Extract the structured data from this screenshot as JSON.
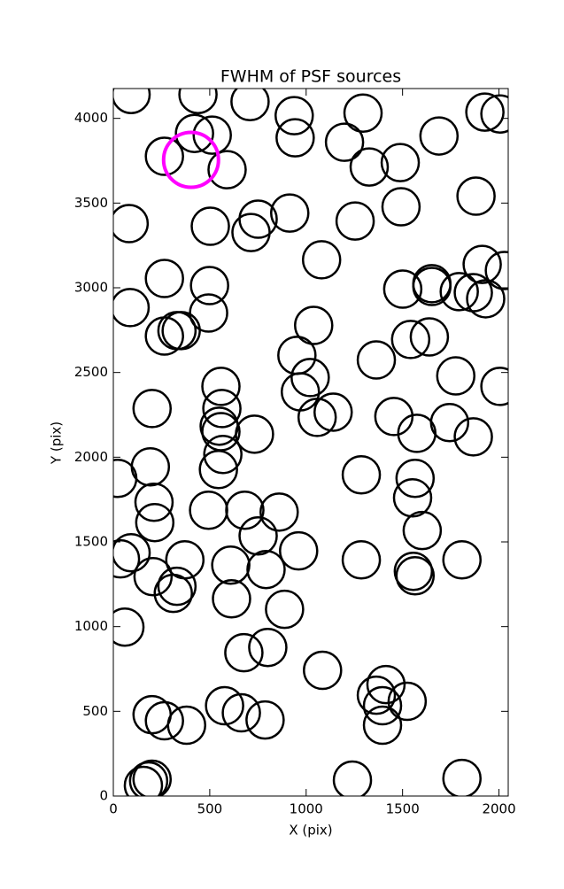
{
  "chart_data": {
    "type": "scatter",
    "title": "FWHM of PSF sources",
    "x_label": "X (pix)",
    "y_label": "Y (pix)",
    "xlim": [
      0,
      2048
    ],
    "ylim": [
      0,
      4176
    ],
    "xticks": [
      0,
      500,
      1000,
      1500,
      2000
    ],
    "yticks": [
      0,
      500,
      1000,
      1500,
      2000,
      2500,
      3000,
      3500,
      4000
    ],
    "series": [
      {
        "color": "#000000",
        "marker_size": 21,
        "x": [
          92,
          439,
          709,
          938,
          1295,
          1927,
          2005,
          421,
          513,
          943,
          1199,
          1689,
          265,
          590,
          1327,
          1488,
          82,
          503,
          751,
          714,
          915,
          1254,
          1492,
          1881,
          1080,
          265,
          499,
          1501,
          1652,
          1652,
          1913,
          2028,
          1794,
          1867,
          1931,
          87,
          494,
          1039,
          265,
          330,
          352,
          1542,
          1639,
          952,
          1364,
          1021,
          970,
          558,
          1776,
          201,
          563,
          2005,
          1057,
          1140,
          1455,
          1744,
          549,
          558,
          732,
          1574,
          1867,
          192,
          568,
          545,
          23,
          1286,
          1565,
          211,
          215,
          494,
          682,
          860,
          1552,
          751,
          1602,
          37,
          92,
          961,
          371,
          1286,
          609,
          792,
          1808,
          206,
          1556,
          1565,
          330,
          311,
          613,
          888,
          60,
          677,
          801,
          1085,
          1364,
          1414,
          1396,
          1524,
          1396,
          201,
          577,
          265,
          380,
          664,
          787,
          183,
          201,
          156,
          1240,
          1808
        ],
        "values": [
          4141,
          4141,
          4099,
          4016,
          4031,
          4037,
          4026,
          3911,
          3901,
          3885,
          3859,
          3896,
          3776,
          3697,
          3713,
          3739,
          3379,
          3363,
          3405,
          3326,
          3441,
          3394,
          3478,
          3541,
          3165,
          3055,
          3013,
          2992,
          3024,
          3008,
          3138,
          3102,
          2977,
          2971,
          2935,
          2883,
          2851,
          2778,
          2715,
          2747,
          2747,
          2695,
          2710,
          2601,
          2574,
          2470,
          2386,
          2418,
          2480,
          2287,
          2287,
          2418,
          2235,
          2266,
          2240,
          2204,
          2183,
          2151,
          2136,
          2141,
          2120,
          1943,
          2016,
          1927,
          1875,
          1896,
          1875,
          1734,
          1614,
          1687,
          1687,
          1676,
          1760,
          1535,
          1567,
          1400,
          1436,
          1447,
          1394,
          1394,
          1363,
          1337,
          1394,
          1295,
          1326,
          1300,
          1238,
          1196,
          1164,
          1102,
          997,
          846,
          877,
          742,
          595,
          658,
          533,
          559,
          418,
          480,
          533,
          444,
          418,
          491,
          449,
          89,
          99,
          63,
          94,
          104
        ]
      },
      {
        "color": "#ff00ff",
        "marker_size": 31,
        "x": [
          403
        ],
        "values": [
          3755
        ]
      }
    ]
  }
}
